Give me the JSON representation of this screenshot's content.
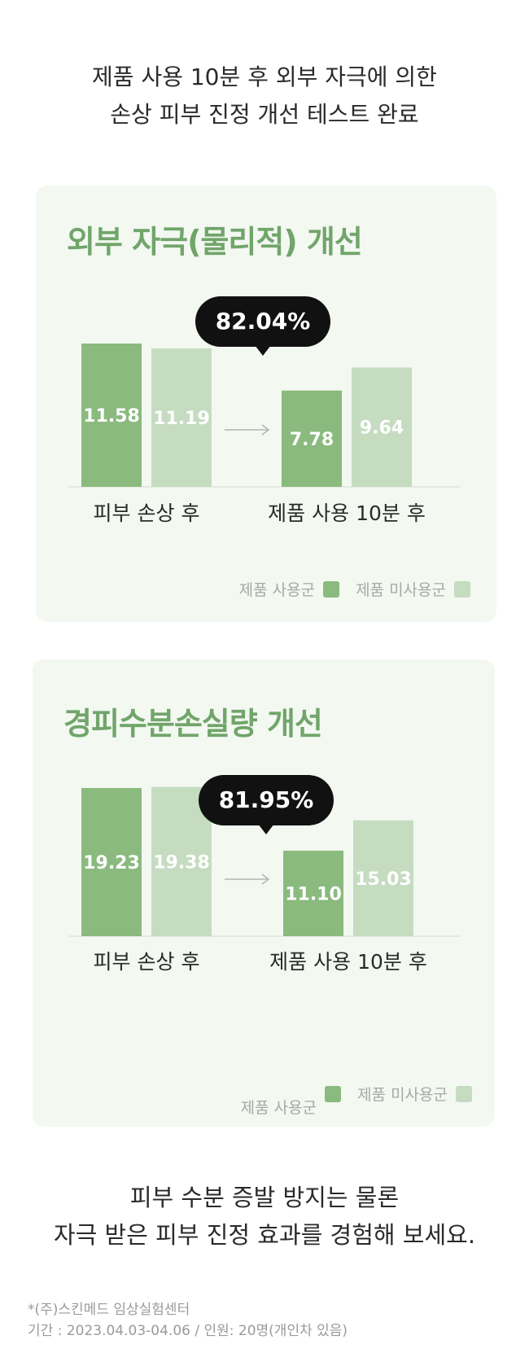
{
  "intro": {
    "line1": "제품 사용 10분 후 외부 자극에 의한",
    "line2": "손상 피부 진정 개선 테스트 완료"
  },
  "colors": {
    "used": "#8aba7e",
    "unused": "#c5dcc0",
    "title": "#71a56a",
    "card_bg": "#f3f8f1"
  },
  "chart_data": [
    {
      "type": "bar",
      "title": "외부 자극(물리적) 개선",
      "badge": "82.04%",
      "categories": [
        "피부 손상 후",
        "제품 사용 10분 후"
      ],
      "series": [
        {
          "name": "제품 사용군",
          "values": [
            11.58,
            7.78
          ]
        },
        {
          "name": "제품 미사용군",
          "values": [
            11.19,
            9.64
          ]
        }
      ],
      "ylim": [
        0,
        12.5
      ],
      "legend": {
        "used": "제품 사용군",
        "unused": "제품 미사용군",
        "position": "bottom-right"
      },
      "grid": false
    },
    {
      "type": "bar",
      "title": "경피수분손실량 개선",
      "badge": "81.95%",
      "categories": [
        "피부 손상 후",
        "제품 사용 10분 후"
      ],
      "series": [
        {
          "name": "제품 사용군",
          "values": [
            19.23,
            11.1
          ]
        },
        {
          "name": "제품 미사용군",
          "values": [
            19.38,
            15.03
          ]
        }
      ],
      "value_labels": [
        [
          "19.23",
          "11.10"
        ],
        [
          "19.38",
          "15.03"
        ]
      ],
      "ylim": [
        0,
        20.5
      ],
      "legend": {
        "used": "제품 사용군",
        "unused": "제품 미사용군",
        "position": "bottom-right"
      },
      "grid": false
    }
  ],
  "outro": {
    "line1": "피부 수분 증발 방지는 물론",
    "line2": "자극 받은 피부 진정 효과를 경험해 보세요."
  },
  "footnote": {
    "line1": "*(주)스킨메드 임상실험센터",
    "line2": "기간 : 2023.04.03-04.06 / 인원: 20명(개인차 있음)"
  }
}
